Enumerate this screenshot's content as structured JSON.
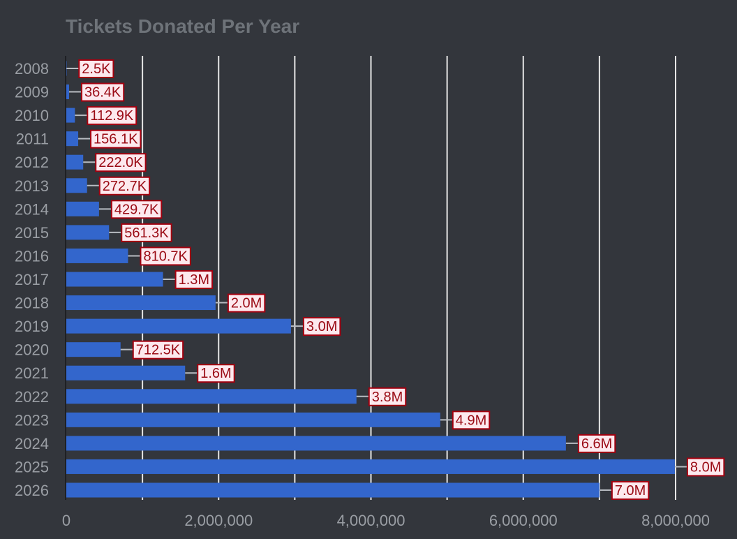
{
  "chart_data": {
    "type": "bar",
    "orientation": "horizontal",
    "title": "Tickets Donated Per Year",
    "xlabel": "",
    "ylabel": "",
    "categories": [
      "2008",
      "2009",
      "2010",
      "2011",
      "2012",
      "2013",
      "2014",
      "2015",
      "2016",
      "2017",
      "2018",
      "2019",
      "2020",
      "2021",
      "2022",
      "2023",
      "2024",
      "2025",
      "2026"
    ],
    "values": [
      2500,
      36400,
      112900,
      156100,
      222000,
      272700,
      429700,
      561300,
      810700,
      1270000,
      1960000,
      2950000,
      712500,
      1560000,
      3810000,
      4910000,
      6560000,
      7990000,
      7000000
    ],
    "data_labels": [
      "2.5K",
      "36.4K",
      "112.9K",
      "156.1K",
      "222.0K",
      "272.7K",
      "429.7K",
      "561.3K",
      "810.7K",
      "1.3M",
      "2.0M",
      "3.0M",
      "712.5K",
      "1.6M",
      "3.8M",
      "4.9M",
      "6.6M",
      "8.0M",
      "7.0M"
    ],
    "xlim": [
      0,
      8000000
    ],
    "x_ticks": [
      0,
      2000000,
      4000000,
      6000000,
      8000000
    ],
    "x_tick_labels": [
      "0",
      "2,000,000",
      "4,000,000",
      "6,000,000",
      "8,000,000"
    ],
    "grid": true,
    "legend": "none",
    "colors": {
      "background": "#33363c",
      "bar": "#3366cc",
      "grid": "#e6e6e6",
      "label_fill": "#fde9ee",
      "label_border": "#a3000f",
      "label_text": "#9a0a14",
      "tick_text": "#9a9ea4",
      "title_text": "#6e7379"
    }
  }
}
